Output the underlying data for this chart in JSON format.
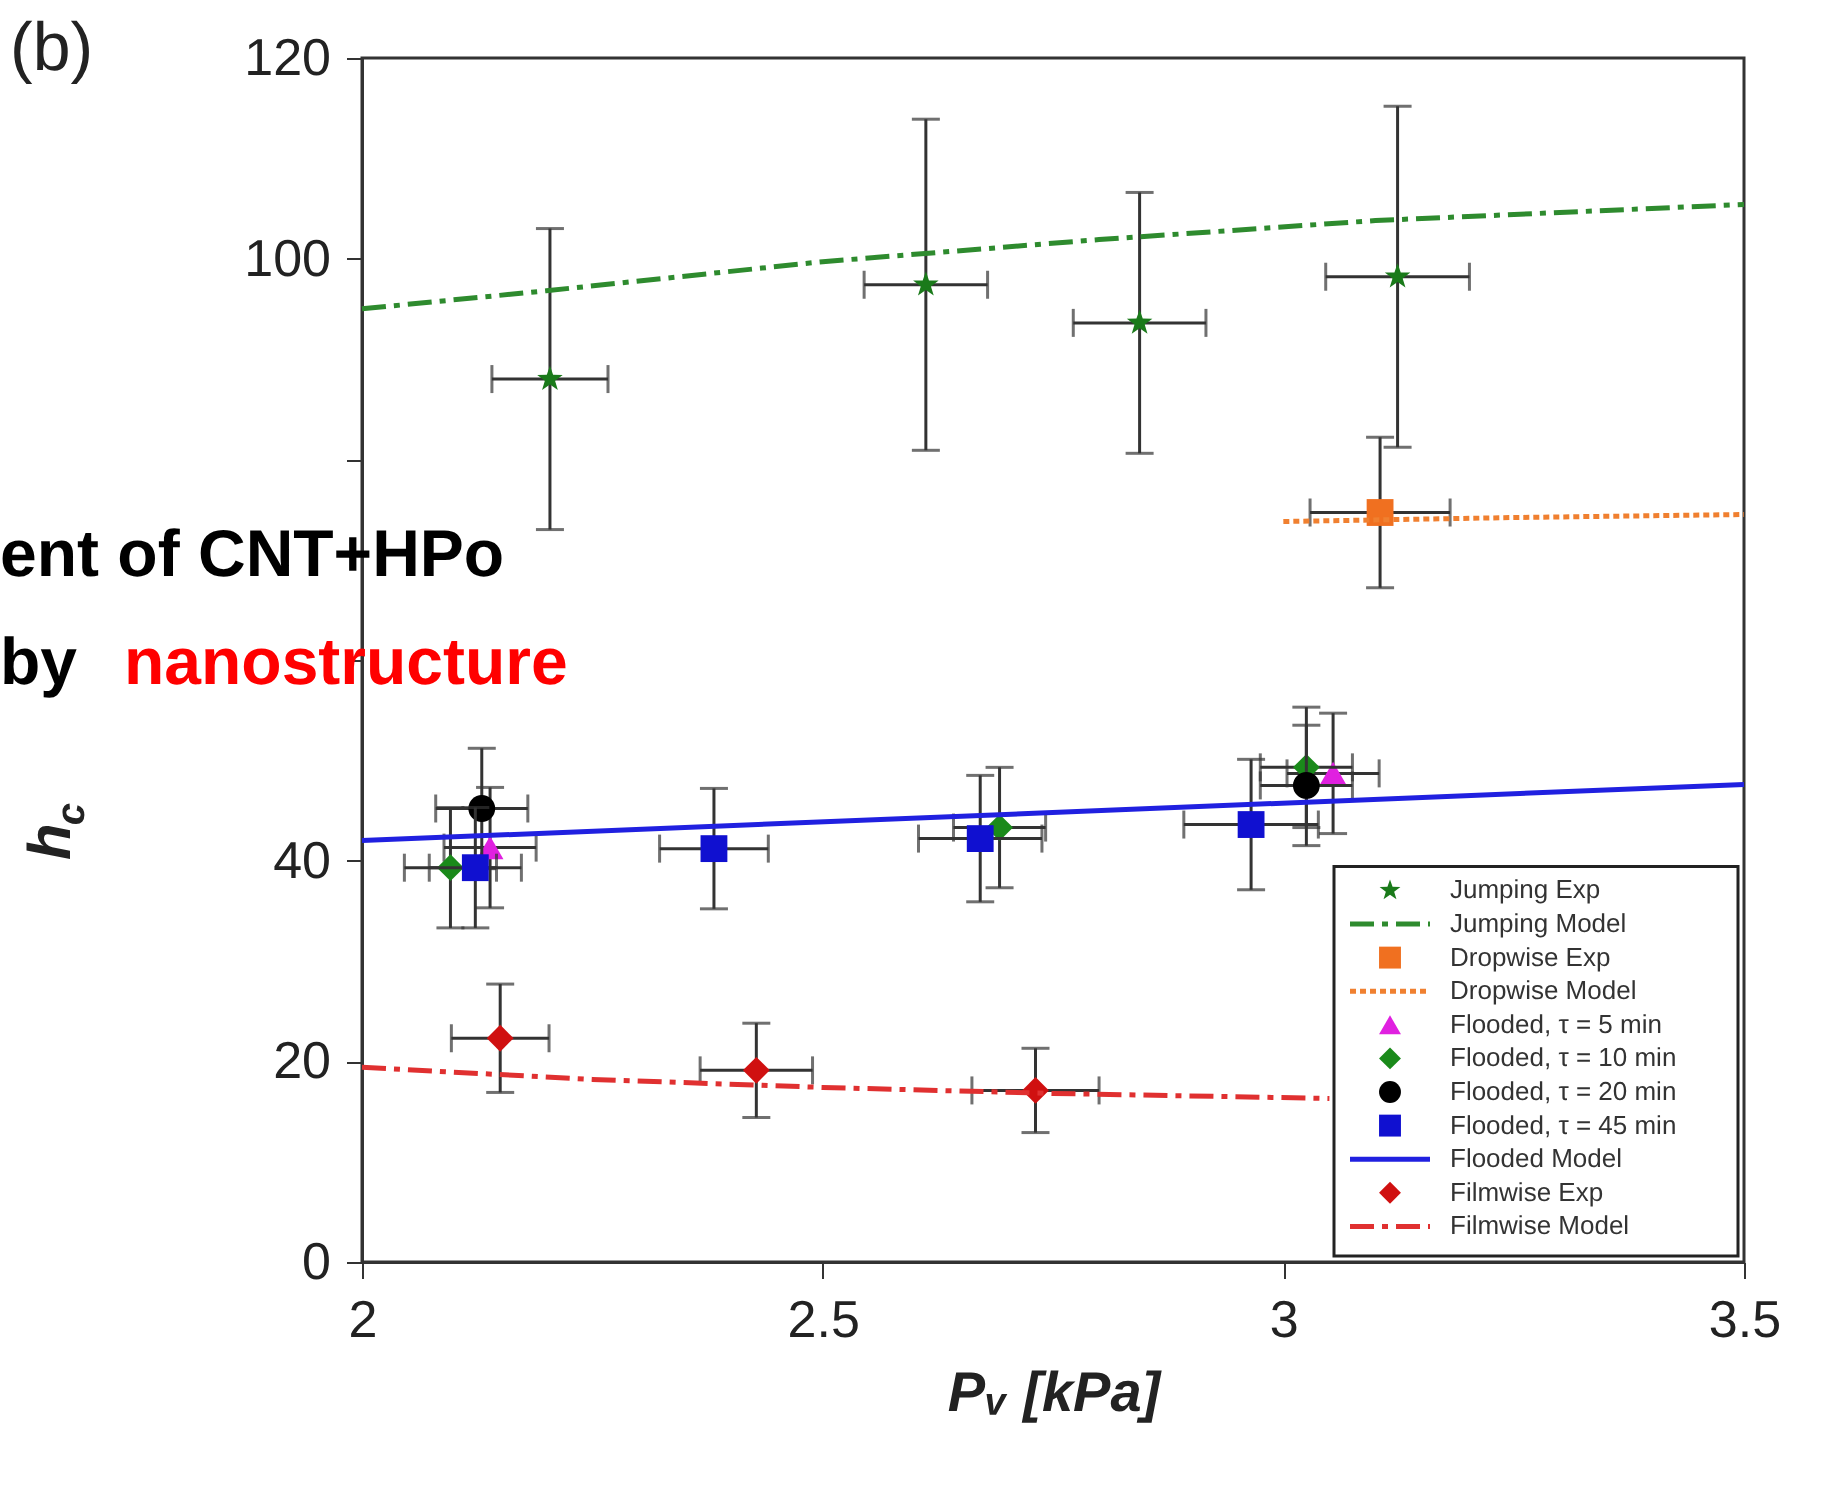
{
  "chart_data": {
    "type": "scatter",
    "xlabel": "Pᵥ [kPa]",
    "ylabel": "h$_{c}$",
    "xlim": [
      2,
      3.5
    ],
    "xticks": [
      2,
      2.5,
      3,
      3.5
    ],
    "ylim": [
      0,
      120
    ],
    "yticks": [
      0,
      20,
      40,
      {
        "value": 60,
        "label": null
      },
      {
        "value": 80,
        "label": null
      },
      100,
      120
    ],
    "grid": false,
    "legend": "bottom right",
    "annotations": [
      "(b)",
      "ent of CNT+HPo",
      "by",
      "nanostructure"
    ],
    "series": [
      {
        "name": "Jumping Exp",
        "type": "scatter",
        "marker": "star",
        "color": "#1a7a1a",
        "x": [
          2.204,
          2.612,
          2.844,
          3.124
        ],
        "values": [
          88,
          97.4,
          93.6,
          98.2
        ],
        "errors": [
          15,
          16.5,
          13,
          17
        ],
        "xerrors": [
          0.063,
          0.067,
          0.072,
          0.078
        ]
      },
      {
        "name": "Jumping Model",
        "type": "line",
        "line_style": "dashed",
        "color": "#2e8b2e",
        "x": [
          2,
          2.2,
          2.5,
          2.8,
          3.1,
          3.5
        ],
        "values": [
          95,
          96.8,
          99.7,
          101.9,
          103.8,
          105.4
        ]
      },
      {
        "name": "Dropwise Exp",
        "type": "scatter",
        "marker": "square",
        "color": "#f07020",
        "x": [
          3.105
        ],
        "values": [
          74.7
        ],
        "errors": [
          7.5
        ],
        "xerrors": [
          0.076
        ]
      },
      {
        "name": "Dropwise Model",
        "type": "line",
        "line_style": "dotted",
        "color": "#f08030",
        "x": [
          3.0,
          3.25,
          3.5
        ],
        "values": [
          73.8,
          74.2,
          74.5
        ]
      },
      {
        "name": "Flooded, τ = 5 min",
        "type": "scatter",
        "marker": "triangle",
        "color": "#e020e0",
        "x": [
          2.139,
          3.054
        ],
        "values": [
          41.3,
          48.7
        ],
        "errors": [
          6,
          6
        ],
        "xerrors": [
          0.05,
          0.05
        ]
      },
      {
        "name": "Flooded, τ = 10 min",
        "type": "scatter",
        "marker": "diamond",
        "color": "#1a8a1a",
        "x": [
          2.096,
          2.692,
          3.025
        ],
        "values": [
          39.3,
          43.3,
          49.3
        ],
        "errors": [
          6,
          6,
          6
        ],
        "xerrors": [
          0.05,
          0.05,
          0.05
        ]
      },
      {
        "name": "Flooded, τ = 20 min",
        "type": "scatter",
        "marker": "circle",
        "color": "#000000",
        "x": [
          2.13,
          3.025
        ],
        "values": [
          45.2,
          47.5
        ],
        "errors": [
          6,
          6
        ],
        "xerrors": [
          0.05,
          0.05
        ]
      },
      {
        "name": "Flooded, τ = 45 min",
        "type": "scatter",
        "marker": "square",
        "color": "#1010d0",
        "x": [
          2.123,
          2.382,
          2.671,
          2.965
        ],
        "values": [
          39.3,
          41.2,
          42.2,
          43.6
        ],
        "errors": [
          6,
          6,
          6.3,
          6.5
        ],
        "xerrors": [
          0.05,
          0.059,
          0.067,
          0.073
        ]
      },
      {
        "name": "Flooded Model",
        "type": "line",
        "line_style": "solid",
        "color": "#2020e0",
        "x": [
          2,
          3.5
        ],
        "values": [
          42,
          47.6
        ]
      },
      {
        "name": "Filmwise Exp",
        "type": "scatter",
        "marker": "diamond",
        "color": "#d01010",
        "x": [
          2.15,
          2.428,
          2.731
        ],
        "values": [
          22.3,
          19.1,
          17.1
        ],
        "errors": [
          5.4,
          4.7,
          4.2
        ],
        "xerrors": [
          0.053,
          0.061,
          0.069
        ]
      },
      {
        "name": "Filmwise Model",
        "type": "line",
        "line_style": "dashed",
        "color": "#e03030",
        "x": [
          2,
          2.25,
          2.5,
          2.75,
          3.05
        ],
        "values": [
          19.4,
          18.2,
          17.4,
          16.8,
          16.3
        ]
      }
    ]
  }
}
